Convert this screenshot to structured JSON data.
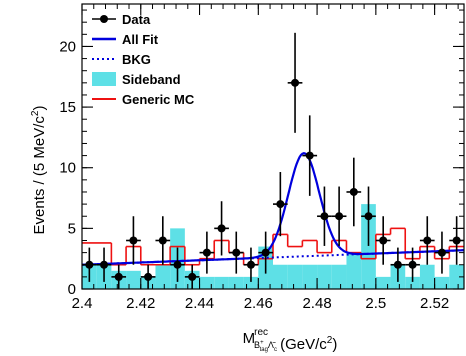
{
  "chart_data": {
    "type": "scatter",
    "title": "",
    "xlabel": {
      "main": "M",
      "sup": "rec",
      "sub_b": "B",
      "sub_b_sup": "+",
      "sub_b_sub": "tag",
      "sub_lambda": "Λ̄",
      "sub_lambda_sub": "c",
      "sub_lambda_sup": "-",
      "unit_open": " (GeV/c",
      "unit_power": "2",
      "unit_close": ")"
    },
    "ylabel": {
      "main": "Events / (5 MeV/c",
      "power": "2",
      "close": ")"
    },
    "xlim": [
      2.4,
      2.53
    ],
    "ylim": [
      0,
      23.5
    ],
    "xticks": [
      {
        "value": 2.4,
        "label": "2.4"
      },
      {
        "value": 2.42,
        "label": "2.42"
      },
      {
        "value": 2.44,
        "label": "2.44"
      },
      {
        "value": 2.46,
        "label": "2.46"
      },
      {
        "value": 2.48,
        "label": "2.48"
      },
      {
        "value": 2.5,
        "label": "2.5"
      },
      {
        "value": 2.52,
        "label": "2.52"
      }
    ],
    "yticks": [
      {
        "value": 0,
        "label": "0"
      },
      {
        "value": 5,
        "label": "5"
      },
      {
        "value": 10,
        "label": "10"
      },
      {
        "value": 15,
        "label": "15"
      },
      {
        "value": 20,
        "label": "20"
      }
    ],
    "legend_position": "top-left",
    "legend": [
      {
        "key": "data",
        "label": "Data"
      },
      {
        "key": "fit",
        "label": "All Fit"
      },
      {
        "key": "bkg",
        "label": "BKG"
      },
      {
        "key": "sideband",
        "label": "Sideband"
      },
      {
        "key": "mc",
        "label": "Generic MC"
      }
    ],
    "colors": {
      "data": "#000000",
      "fit": "#0000dd",
      "bkg": "#0000dd",
      "sideband": "#5ee0e6",
      "mc": "#ee1111"
    },
    "bin_width": 0.005,
    "data_points": [
      {
        "x": 2.4025,
        "y": 2
      },
      {
        "x": 2.4075,
        "y": 2
      },
      {
        "x": 2.4125,
        "y": 1
      },
      {
        "x": 2.4175,
        "y": 4
      },
      {
        "x": 2.4225,
        "y": 1
      },
      {
        "x": 2.4275,
        "y": 4
      },
      {
        "x": 2.4325,
        "y": 2
      },
      {
        "x": 2.4375,
        "y": 1
      },
      {
        "x": 2.4425,
        "y": 3
      },
      {
        "x": 2.4475,
        "y": 5
      },
      {
        "x": 2.4525,
        "y": 3
      },
      {
        "x": 2.4575,
        "y": 2
      },
      {
        "x": 2.4625,
        "y": 3
      },
      {
        "x": 2.4675,
        "y": 7
      },
      {
        "x": 2.4725,
        "y": 17
      },
      {
        "x": 2.4775,
        "y": 11
      },
      {
        "x": 2.4825,
        "y": 6
      },
      {
        "x": 2.4875,
        "y": 6
      },
      {
        "x": 2.4925,
        "y": 8
      },
      {
        "x": 2.4975,
        "y": 6
      },
      {
        "x": 2.5025,
        "y": 4
      },
      {
        "x": 2.5075,
        "y": 2
      },
      {
        "x": 2.5125,
        "y": 2
      },
      {
        "x": 2.5175,
        "y": 4
      },
      {
        "x": 2.5225,
        "y": 3
      },
      {
        "x": 2.5275,
        "y": 4
      }
    ],
    "sideband": [
      {
        "x0": 2.4,
        "x1": 2.405,
        "y": 2.0
      },
      {
        "x0": 2.405,
        "x1": 2.41,
        "y": 2.0
      },
      {
        "x0": 2.41,
        "x1": 2.415,
        "y": 1.5
      },
      {
        "x0": 2.415,
        "x1": 2.42,
        "y": 1.5
      },
      {
        "x0": 2.42,
        "x1": 2.425,
        "y": 1.0
      },
      {
        "x0": 2.425,
        "x1": 2.43,
        "y": 2.0
      },
      {
        "x0": 2.43,
        "x1": 2.435,
        "y": 5.0
      },
      {
        "x0": 2.435,
        "x1": 2.44,
        "y": 1.5
      },
      {
        "x0": 2.44,
        "x1": 2.445,
        "y": 1.0
      },
      {
        "x0": 2.445,
        "x1": 2.45,
        "y": 1.0
      },
      {
        "x0": 2.45,
        "x1": 2.455,
        "y": 1.0
      },
      {
        "x0": 2.455,
        "x1": 2.46,
        "y": 1.0
      },
      {
        "x0": 2.46,
        "x1": 2.465,
        "y": 3.5
      },
      {
        "x0": 2.465,
        "x1": 2.47,
        "y": 2.0
      },
      {
        "x0": 2.47,
        "x1": 2.475,
        "y": 2.0
      },
      {
        "x0": 2.475,
        "x1": 2.48,
        "y": 2.0
      },
      {
        "x0": 2.48,
        "x1": 2.485,
        "y": 2.0
      },
      {
        "x0": 2.485,
        "x1": 2.49,
        "y": 2.0
      },
      {
        "x0": 2.49,
        "x1": 2.495,
        "y": 3.0
      },
      {
        "x0": 2.495,
        "x1": 2.5,
        "y": 7.0
      },
      {
        "x0": 2.5,
        "x1": 2.505,
        "y": 1.0
      },
      {
        "x0": 2.505,
        "x1": 2.51,
        "y": 2.0
      },
      {
        "x0": 2.51,
        "x1": 2.515,
        "y": 1.0
      },
      {
        "x0": 2.515,
        "x1": 2.52,
        "y": 2.0
      },
      {
        "x0": 2.52,
        "x1": 2.525,
        "y": 1.0
      },
      {
        "x0": 2.525,
        "x1": 2.53,
        "y": 2.0
      }
    ],
    "generic_mc": [
      {
        "x0": 2.4,
        "x1": 2.41,
        "y": 3.8
      },
      {
        "x0": 2.41,
        "x1": 2.415,
        "y": 2.0
      },
      {
        "x0": 2.415,
        "x1": 2.42,
        "y": 3.5
      },
      {
        "x0": 2.42,
        "x1": 2.43,
        "y": 2.0
      },
      {
        "x0": 2.43,
        "x1": 2.435,
        "y": 3.5
      },
      {
        "x0": 2.435,
        "x1": 2.44,
        "y": 2.0
      },
      {
        "x0": 2.44,
        "x1": 2.445,
        "y": 2.5
      },
      {
        "x0": 2.445,
        "x1": 2.45,
        "y": 4.0
      },
      {
        "x0": 2.45,
        "x1": 2.455,
        "y": 3.0
      },
      {
        "x0": 2.455,
        "x1": 2.46,
        "y": 2.0
      },
      {
        "x0": 2.46,
        "x1": 2.465,
        "y": 2.5
      },
      {
        "x0": 2.465,
        "x1": 2.47,
        "y": 4.5
      },
      {
        "x0": 2.47,
        "x1": 2.475,
        "y": 3.5
      },
      {
        "x0": 2.475,
        "x1": 2.48,
        "y": 4.0
      },
      {
        "x0": 2.48,
        "x1": 2.485,
        "y": 3.0
      },
      {
        "x0": 2.485,
        "x1": 2.49,
        "y": 4.0
      },
      {
        "x0": 2.49,
        "x1": 2.495,
        "y": 3.0
      },
      {
        "x0": 2.495,
        "x1": 2.5,
        "y": 2.5
      },
      {
        "x0": 2.5,
        "x1": 2.505,
        "y": 4.5
      },
      {
        "x0": 2.505,
        "x1": 2.51,
        "y": 5.0
      },
      {
        "x0": 2.51,
        "x1": 2.515,
        "y": 2.5
      },
      {
        "x0": 2.515,
        "x1": 2.52,
        "y": 3.5
      },
      {
        "x0": 2.52,
        "x1": 2.525,
        "y": 2.5
      },
      {
        "x0": 2.525,
        "x1": 2.53,
        "y": 3.5
      }
    ],
    "fit_model": {
      "peak_mean": 2.4755,
      "peak_sigma": 0.0053,
      "peak_amplitude": 8.5,
      "bkg_at_start": 2.0,
      "bkg_at_end": 3.2
    }
  }
}
